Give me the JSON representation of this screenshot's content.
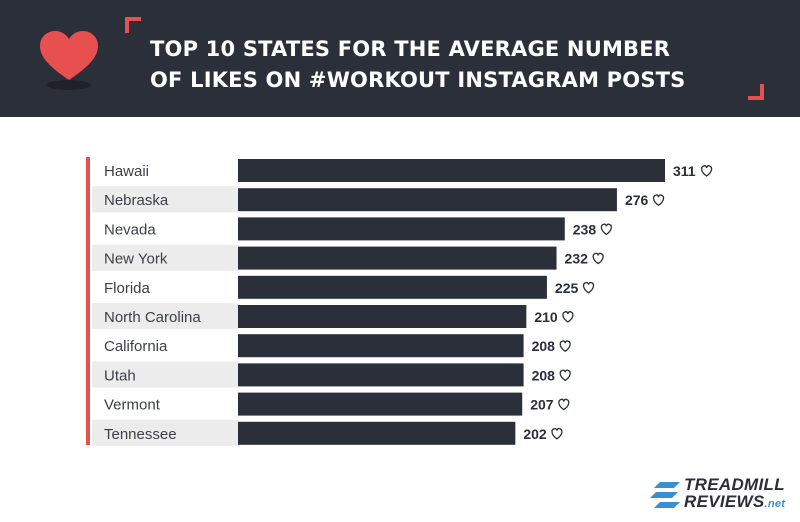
{
  "header": {
    "title_line1": "Top 10 States for the Average Number",
    "title_line2": "of Likes on #Workout Instagram Posts",
    "icon": "heart-icon"
  },
  "brand": {
    "line1": "TREADMILL",
    "line2": "REVIEWS",
    "suffix": ".net",
    "icon": "stripes-logo-icon"
  },
  "colors": {
    "header_bg": "#2b2f3a",
    "accent": "#e8504f",
    "bar": "#2b2f3a",
    "row_alt": "#ececec",
    "brand_blue": "#3a8fd3"
  },
  "chart_data": {
    "type": "bar",
    "orientation": "horizontal",
    "title": "Top 10 States for the Average Number of Likes on #Workout Instagram Posts",
    "categories": [
      "Hawaii",
      "Nebraska",
      "Nevada",
      "New York",
      "Florida",
      "North Carolina",
      "California",
      "Utah",
      "Vermont",
      "Tennessee"
    ],
    "values": [
      311,
      276,
      238,
      232,
      225,
      210,
      208,
      208,
      207,
      202
    ],
    "value_suffix_icon": "heart-outline-icon",
    "grid": false,
    "legend": "none"
  }
}
